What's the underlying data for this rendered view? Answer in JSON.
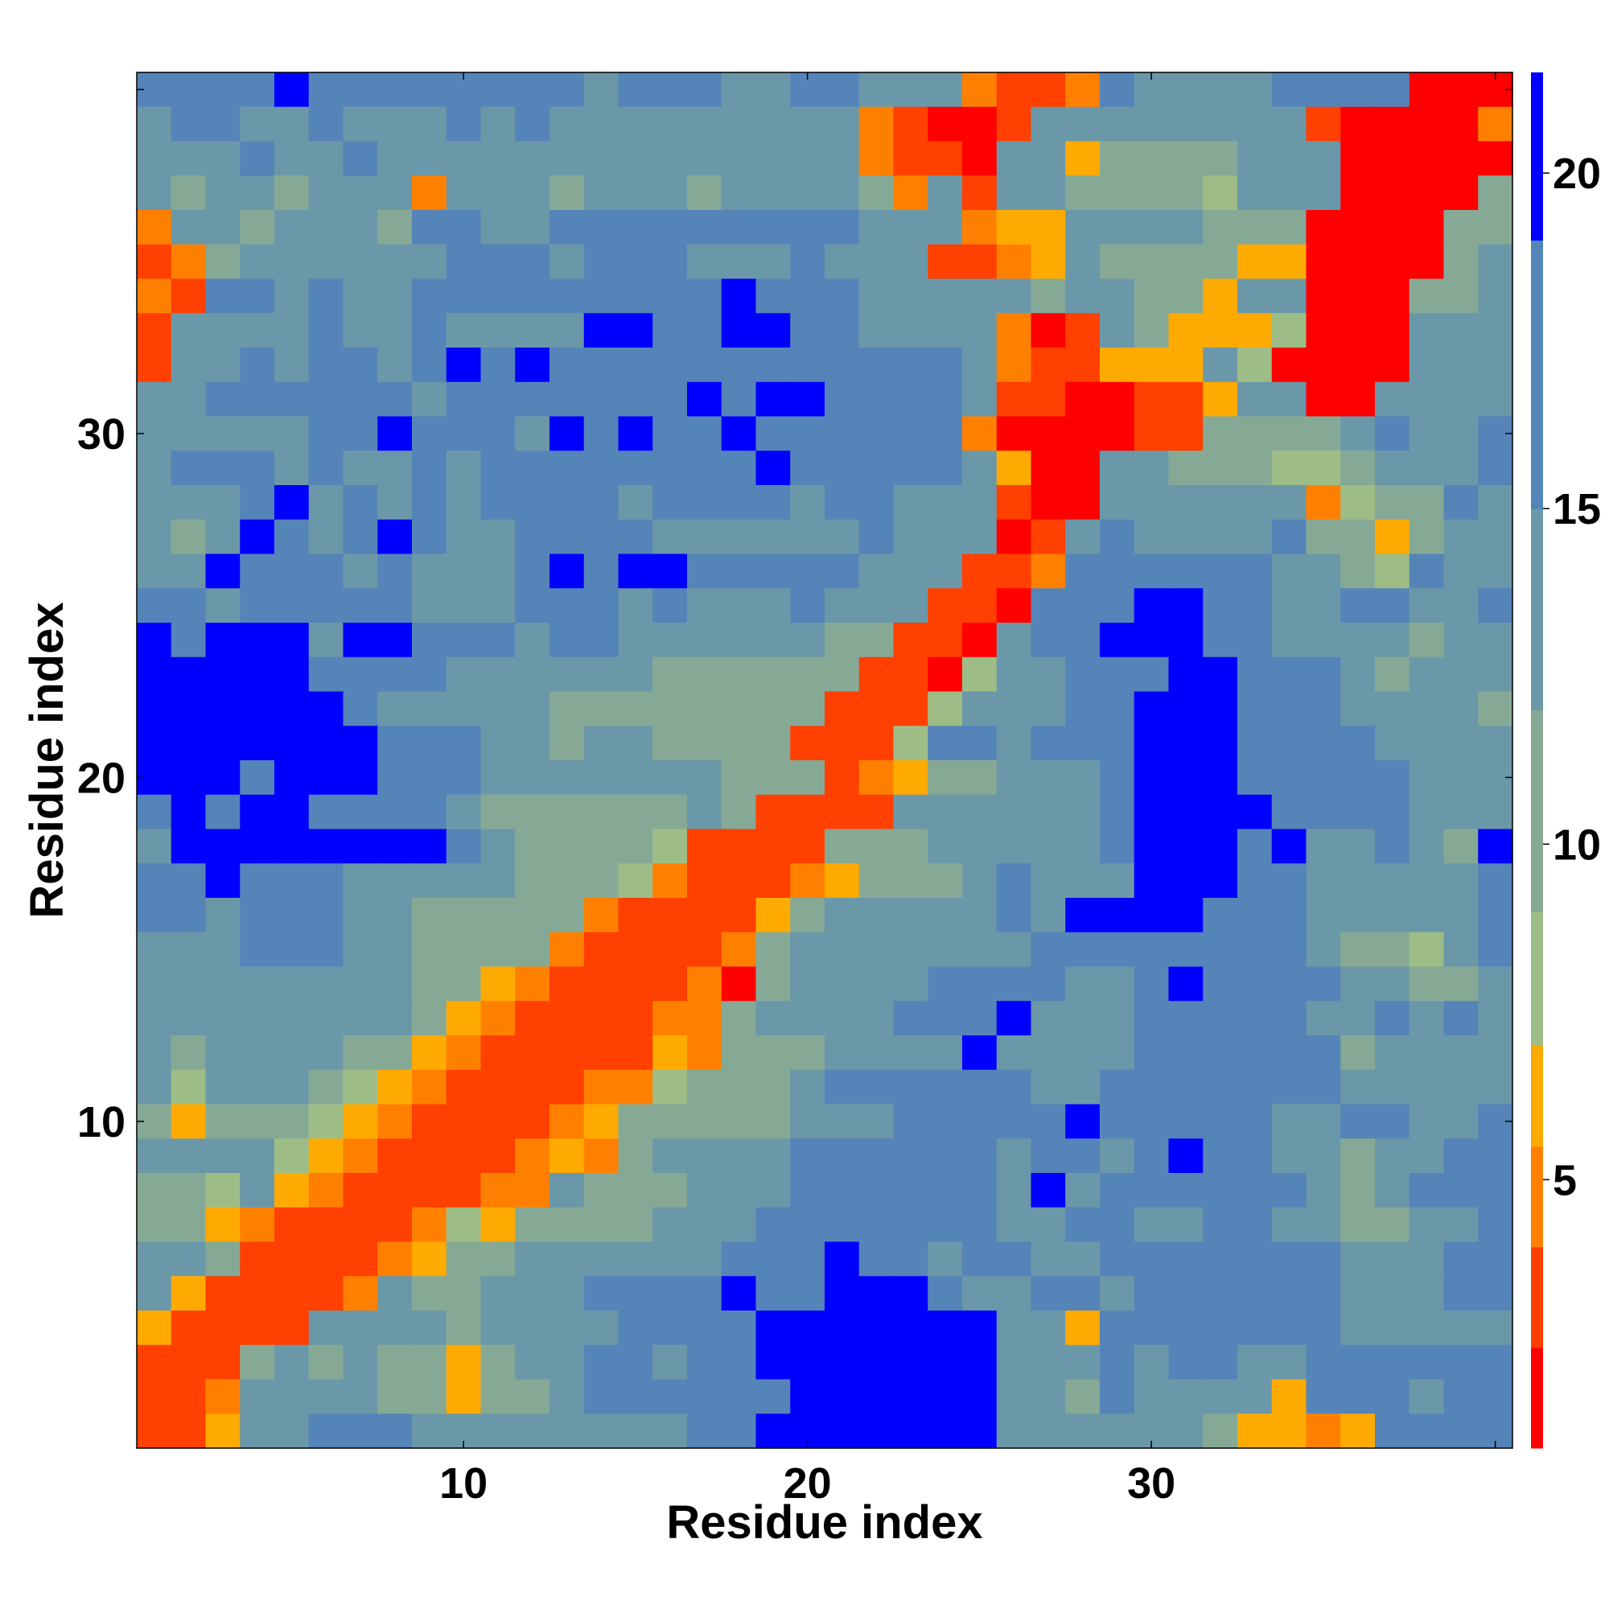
{
  "chart_data": {
    "type": "heatmap",
    "title": "",
    "xlabel": "Residue index",
    "ylabel": "Residue index",
    "xticks": [
      10,
      20,
      30
    ],
    "yticks": [
      10,
      20,
      30
    ],
    "xlim": [
      0.5,
      40.5
    ],
    "ylim": [
      0.5,
      40.5
    ],
    "colorbar": {
      "ticks": [
        5,
        10,
        15,
        20
      ],
      "range": [
        1,
        21.5
      ],
      "colors": [
        "#ff0000",
        "#ff4000",
        "#ff8000",
        "#ffaa00",
        "#9ebd86",
        "#86a996",
        "#6b98a8",
        "#5584b8",
        "#0000ff"
      ],
      "color_bounds": [
        1,
        2.5,
        4,
        5.5,
        7,
        9,
        12,
        15,
        19,
        21.5
      ]
    },
    "grid_size": 40,
    "matrix_desc": "rows listed from residue 40 (top) to residue 1 (bottom); digits index colorbar.colors (0 = red ... 8 = blue)",
    "rows": [
      "7777877777777677766776662112766667777000",
      "6776676667676666666662100166666666100002",
      "6667667666666666666662110663555566600000",
      "6566566626665666566665261665555466600005",
      "2665666577667777777776662336666555000055",
      "1256666667776777666766611236555533000056",
      "2177676677777777787776666656655366000556",
      "1666676676666887788776666201653334000666",
      "1667677678787777777777776211333640000666",
      "6677777767777777878877776110011366006666",
      "6666677877768787787777772000011555567667",
      "6777676676777777778777776300665554456667",
      "6667867676777767777677666100666666245576",
      "6568767876677776666667666016766667553566",
      "6687776766678788777776661127777776654766",
      "7767777766677767666766611077788776677667",
      "8788868877767766666655110677888776666566",
      "8888877776666665555551104667778877765666",
      "8888887666665555555511146667788877766665",
      "8888888777665665555111477677788877776666",
      "8887888777666666655512355666788877777666",
      "7878877776555555651111666666788887777666",
      "6888888887655554111155566666788878667658",
      "7787776666655542111235556766688877666667",
      "7767776655555211113566666768888777666667",
      "6667776655552111125666666677777777655467",
      "6666666655321111205666677776678777766556",
      "6666666653211112256666777866677777667676",
      "6566665532111113255566668666677777756666",
      "6466654321111224555677777766777777766666",
      "5355543211112355555666777778777776677667",
      "6666432111123256666777777677678776656677",
      "5546321111226555666777777686777777656777",
      "5532111124355556667777777667766776655667",
      "6651111235566666677787767766777777766677",
      "6311112655666777787788876677677777766677",
      "3111166665666677778888888663777777766666",
      "1115656553566776778888888666767766777777",
      "1126666553556777777888888665766663777677",
      "1136677766666666778888888666666533237777"
    ]
  }
}
